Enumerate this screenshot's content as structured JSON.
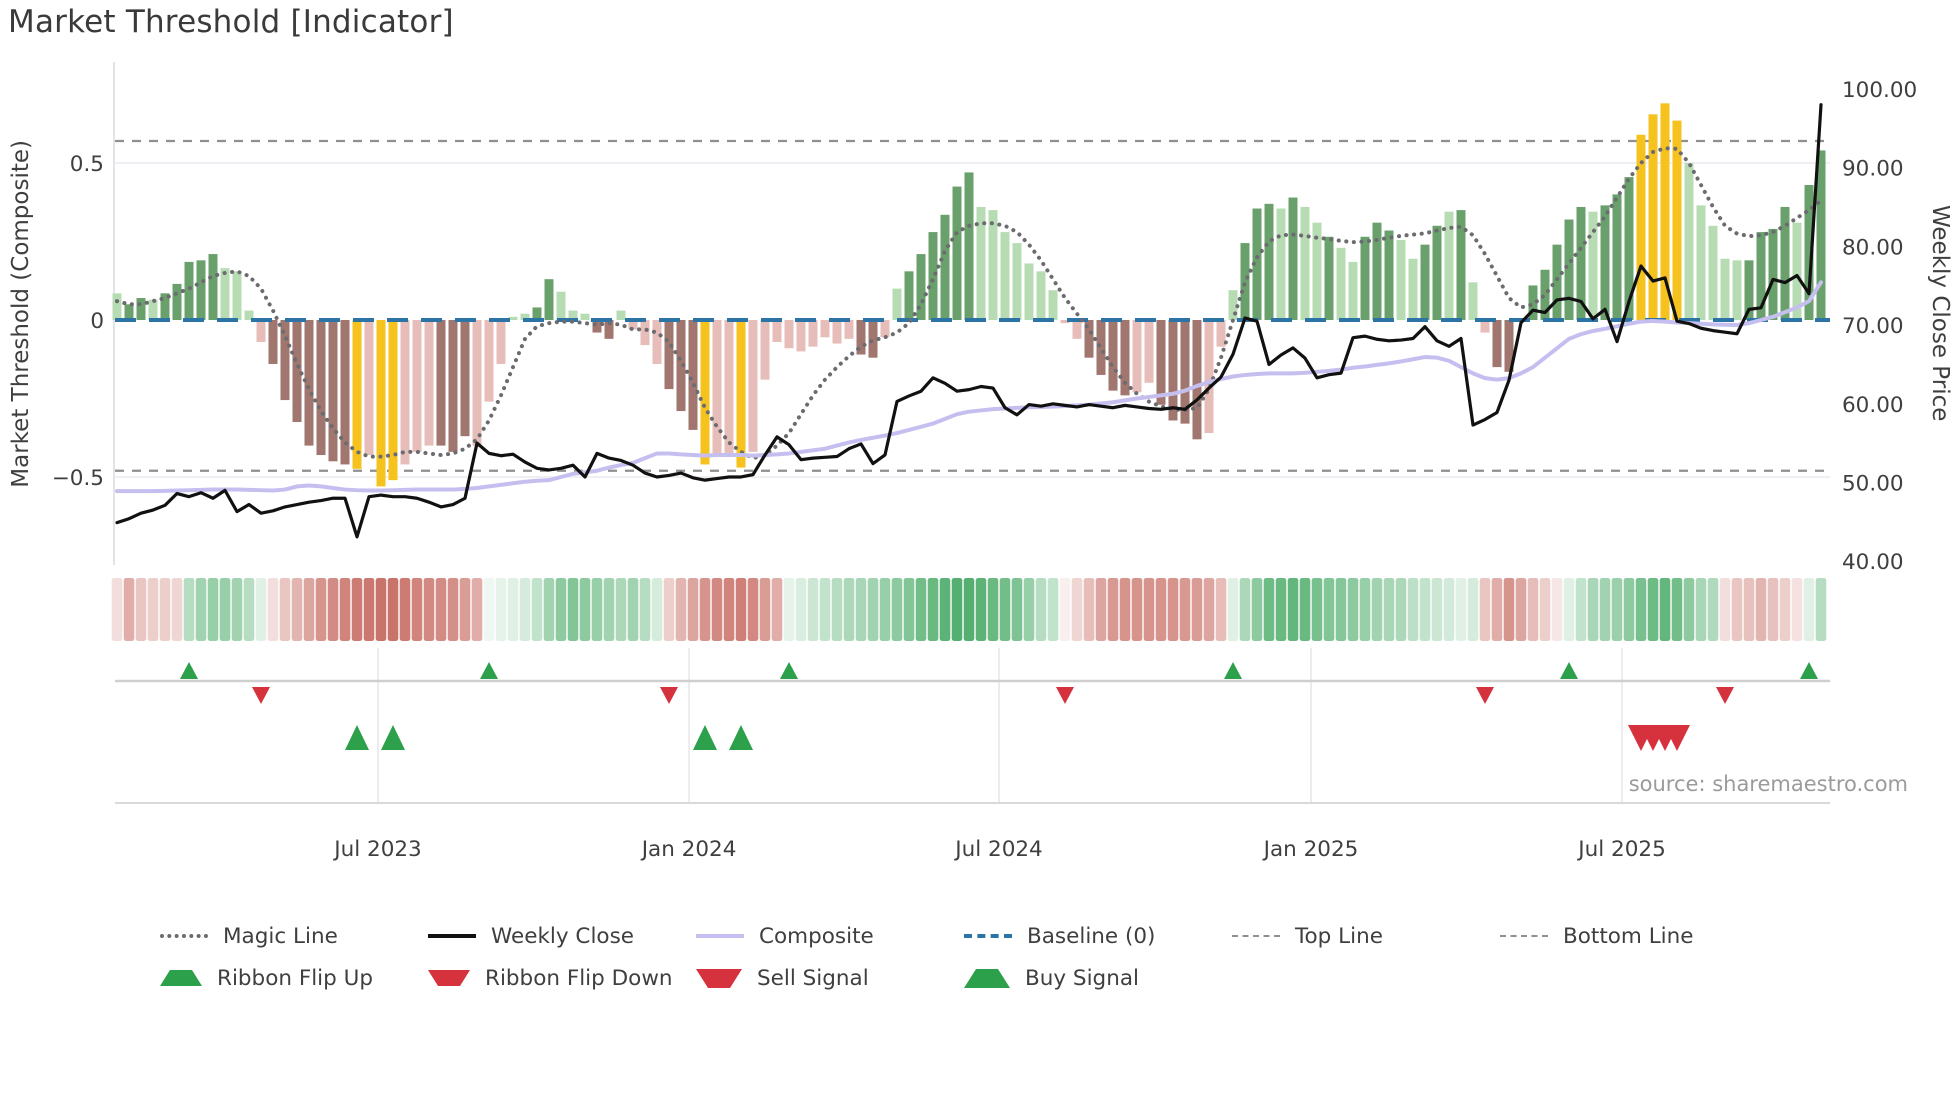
{
  "title": "Market Threshold [Indicator]",
  "source_caption": "source: sharemaestro.com",
  "axes": {
    "left_label": "Market Threshold (Composite)",
    "right_label": "Weekly Close Price",
    "left_ticks": [
      {
        "label": "0.5",
        "value": 0.5
      },
      {
        "label": "0",
        "value": 0
      },
      {
        "label": "−0.5",
        "value": -0.5
      }
    ],
    "right_ticks": [
      {
        "label": "100.00",
        "value": 100
      },
      {
        "label": "90.00",
        "value": 90
      },
      {
        "label": "80.00",
        "value": 80
      },
      {
        "label": "70.00",
        "value": 70
      },
      {
        "label": "60.00",
        "value": 60
      },
      {
        "label": "50.00",
        "value": 50
      },
      {
        "label": "40.00",
        "value": 40
      }
    ],
    "x_ticks": [
      {
        "label": "Jul 2023",
        "week": 21.75
      },
      {
        "label": "Jan 2024",
        "week": 47.67
      },
      {
        "label": "Jul 2024",
        "week": 73.5
      },
      {
        "label": "Jan 2025",
        "week": 99.5
      },
      {
        "label": "Jul 2025",
        "week": 125.42
      }
    ]
  },
  "legend": {
    "row1": [
      {
        "label": "Magic Line",
        "swatch": "sw-magic"
      },
      {
        "label": "Weekly Close",
        "swatch": "sw-close"
      },
      {
        "label": "Composite",
        "swatch": "sw-comp"
      },
      {
        "label": "Baseline (0)",
        "swatch": "sw-base"
      },
      {
        "label": "Top Line",
        "swatch": "sw-guide"
      },
      {
        "label": "Bottom Line",
        "swatch": "sw-guide"
      }
    ],
    "row2": [
      {
        "label": "Ribbon Flip Up",
        "marker": "mk-up"
      },
      {
        "label": "Ribbon Flip Down",
        "marker": "mk-down"
      },
      {
        "label": "Sell Signal",
        "marker": "mk-sell"
      },
      {
        "label": "Buy Signal",
        "marker": "mk-buy"
      }
    ]
  },
  "colors": {
    "bar_dark_green": "#69a06b",
    "bar_light_green": "#b7dcb4",
    "bar_gold": "#f6c21d",
    "bar_light_pink": "#e7bdb9",
    "bar_brown": "#a1766f",
    "weekly_close": "#111111",
    "composite": "#c5bff0",
    "magic_line": "#6b6b70",
    "baseline": "#2d74a6",
    "guide_gray": "#8f8f8f",
    "gridline": "#ececf0",
    "ribbon_green": "#2f9e50",
    "ribbon_red": "#c05b50",
    "flip_up": "#2ca04a",
    "flip_down": "#d6323e",
    "text_dark": "#3f3f3f",
    "text_muted": "#9b9b9b"
  },
  "chart_data": {
    "type": "combo-bar-line",
    "title": "Market Threshold [Indicator]",
    "x_unit": "week",
    "n_weeks": 143,
    "left_axis_range": [
      -0.78,
      0.82
    ],
    "price_axis_range": [
      39.5,
      103.4
    ],
    "baseline": 0,
    "top_line": 0.57,
    "bottom_line": -0.48,
    "grid_values": [
      0.5,
      -0.5
    ],
    "histogram_values": [
      0.085,
      0.05,
      0.07,
      0.065,
      0.085,
      0.115,
      0.185,
      0.19,
      0.21,
      0.165,
      0.155,
      0.03,
      -0.07,
      -0.14,
      -0.255,
      -0.325,
      -0.4,
      -0.43,
      -0.45,
      -0.46,
      -0.474,
      -0.43,
      -0.53,
      -0.51,
      -0.46,
      -0.42,
      -0.4,
      -0.4,
      -0.42,
      -0.37,
      -0.4,
      -0.26,
      -0.14,
      0.01,
      0.02,
      0.04,
      0.13,
      0.09,
      0.03,
      0.02,
      -0.04,
      -0.06,
      0.03,
      -0.03,
      -0.08,
      -0.14,
      -0.22,
      -0.29,
      -0.35,
      -0.46,
      -0.43,
      -0.43,
      -0.47,
      -0.42,
      -0.19,
      -0.07,
      -0.09,
      -0.1,
      -0.085,
      -0.055,
      -0.075,
      -0.06,
      -0.11,
      -0.12,
      -0.055,
      0.1,
      0.155,
      0.21,
      0.28,
      0.335,
      0.425,
      0.47,
      0.36,
      0.35,
      0.28,
      0.245,
      0.18,
      0.155,
      0.095,
      -0.01,
      -0.06,
      -0.12,
      -0.175,
      -0.225,
      -0.24,
      -0.23,
      -0.2,
      -0.27,
      -0.32,
      -0.33,
      -0.38,
      -0.36,
      -0.085,
      0.095,
      0.245,
      0.355,
      0.37,
      0.355,
      0.39,
      0.36,
      0.31,
      0.265,
      0.23,
      0.185,
      0.265,
      0.31,
      0.285,
      0.255,
      0.195,
      0.24,
      0.3,
      0.345,
      0.35,
      0.12,
      -0.04,
      -0.15,
      -0.165,
      0,
      0.11,
      0.16,
      0.24,
      0.32,
      0.36,
      0.345,
      0.365,
      0.4,
      0.455,
      0.59,
      0.655,
      0.69,
      0.635,
      0.5,
      0.365,
      0.3,
      0.195,
      0.19,
      0.19,
      0.28,
      0.29,
      0.36,
      0.31,
      0.43,
      0.54
    ],
    "histogram_colors": [
      "lg",
      "g",
      "g",
      "lg",
      "g",
      "g",
      "g",
      "g",
      "g",
      "lg",
      "lg",
      "lg",
      "p",
      "r",
      "r",
      "r",
      "r",
      "r",
      "r",
      "r",
      "y",
      "p",
      "y",
      "y",
      "p",
      "p",
      "p",
      "r",
      "r",
      "r",
      "p",
      "p",
      "p",
      "lg",
      "lg",
      "g",
      "g",
      "lg",
      "lg",
      "lg",
      "r",
      "r",
      "lg",
      "p",
      "p",
      "p",
      "r",
      "r",
      "r",
      "y",
      "p",
      "p",
      "y",
      "p",
      "p",
      "p",
      "p",
      "p",
      "p",
      "p",
      "p",
      "p",
      "r",
      "r",
      "p",
      "lg",
      "g",
      "g",
      "g",
      "g",
      "g",
      "g",
      "lg",
      "lg",
      "lg",
      "lg",
      "lg",
      "lg",
      "lg",
      "p",
      "p",
      "r",
      "r",
      "r",
      "r",
      "p",
      "p",
      "r",
      "r",
      "r",
      "r",
      "p",
      "p",
      "lg",
      "g",
      "g",
      "g",
      "lg",
      "g",
      "lg",
      "lg",
      "g",
      "lg",
      "lg",
      "g",
      "g",
      "g",
      "lg",
      "lg",
      "g",
      "g",
      "lg",
      "g",
      "lg",
      "p",
      "r",
      "r",
      "lg",
      "g",
      "g",
      "g",
      "g",
      "g",
      "lg",
      "g",
      "g",
      "g",
      "y",
      "y",
      "y",
      "y",
      "lg",
      "lg",
      "lg",
      "lg",
      "lg",
      "g",
      "g",
      "g",
      "g",
      "lg",
      "g",
      "g"
    ],
    "weekly_close": [
      44.9,
      45.4,
      46.1,
      46.5,
      47.1,
      48.6,
      48.2,
      48.7,
      48.0,
      49.0,
      46.3,
      47.2,
      46.1,
      46.4,
      46.9,
      47.2,
      47.5,
      47.7,
      48.0,
      48.0,
      43.1,
      48.2,
      48.4,
      48.2,
      48.2,
      48.0,
      47.5,
      46.9,
      47.2,
      48.0,
      55.0,
      53.7,
      53.4,
      53.6,
      52.6,
      51.8,
      51.6,
      51.8,
      52.2,
      50.7,
      53.7,
      53.1,
      52.8,
      52.2,
      51.2,
      50.7,
      50.9,
      51.2,
      50.6,
      50.3,
      50.5,
      50.7,
      50.7,
      51.0,
      53.5,
      55.8,
      54.8,
      52.9,
      53.1,
      53.2,
      53.3,
      54.3,
      54.9,
      52.4,
      53.5,
      60.3,
      61.0,
      61.6,
      63.3,
      62.6,
      61.6,
      61.8,
      62.2,
      62.0,
      59.5,
      58.6,
      59.9,
      59.7,
      60.0,
      59.8,
      59.6,
      59.9,
      59.7,
      59.5,
      59.8,
      59.6,
      59.4,
      59.3,
      59.5,
      59.3,
      60.5,
      62.0,
      63.4,
      66.3,
      70.9,
      70.5,
      65.0,
      66.2,
      67.1,
      65.8,
      63.3,
      63.7,
      63.9,
      68.4,
      68.6,
      68.2,
      68.0,
      68.1,
      68.3,
      69.8,
      68.0,
      67.3,
      68.3,
      57.3,
      58.0,
      58.9,
      63.0,
      70.3,
      71.9,
      71.6,
      73.2,
      73.4,
      73.0,
      70.8,
      72.0,
      67.9,
      73.0,
      77.5,
      75.6,
      76.0,
      70.5,
      70.2,
      69.6,
      69.3,
      69.1,
      68.9,
      72.0,
      72.2,
      75.8,
      75.4,
      76.3,
      74.0,
      98.0
    ],
    "composite": [
      -0.545,
      -0.545,
      -0.545,
      -0.545,
      -0.544,
      -0.543,
      -0.542,
      -0.541,
      -0.54,
      -0.54,
      -0.54,
      -0.541,
      -0.542,
      -0.543,
      -0.54,
      -0.53,
      -0.527,
      -0.53,
      -0.535,
      -0.54,
      -0.542,
      -0.543,
      -0.543,
      -0.542,
      -0.541,
      -0.54,
      -0.54,
      -0.54,
      -0.54,
      -0.538,
      -0.535,
      -0.53,
      -0.525,
      -0.52,
      -0.515,
      -0.512,
      -0.51,
      -0.5,
      -0.49,
      -0.485,
      -0.48,
      -0.47,
      -0.462,
      -0.455,
      -0.44,
      -0.425,
      -0.425,
      -0.428,
      -0.43,
      -0.432,
      -0.43,
      -0.43,
      -0.43,
      -0.432,
      -0.43,
      -0.428,
      -0.425,
      -0.42,
      -0.415,
      -0.41,
      -0.4,
      -0.39,
      -0.382,
      -0.375,
      -0.368,
      -0.36,
      -0.35,
      -0.34,
      -0.33,
      -0.315,
      -0.3,
      -0.292,
      -0.288,
      -0.284,
      -0.282,
      -0.28,
      -0.278,
      -0.277,
      -0.276,
      -0.274,
      -0.272,
      -0.27,
      -0.266,
      -0.262,
      -0.256,
      -0.25,
      -0.245,
      -0.24,
      -0.235,
      -0.225,
      -0.21,
      -0.198,
      -0.188,
      -0.18,
      -0.175,
      -0.172,
      -0.17,
      -0.17,
      -0.17,
      -0.168,
      -0.165,
      -0.162,
      -0.158,
      -0.152,
      -0.148,
      -0.143,
      -0.138,
      -0.132,
      -0.125,
      -0.118,
      -0.12,
      -0.13,
      -0.15,
      -0.17,
      -0.185,
      -0.19,
      -0.185,
      -0.17,
      -0.15,
      -0.12,
      -0.09,
      -0.06,
      -0.045,
      -0.035,
      -0.028,
      -0.02,
      -0.012,
      -0.005,
      -0.003,
      -0.005,
      -0.008,
      -0.01,
      -0.012,
      -0.014,
      -0.015,
      -0.016,
      -0.01,
      0.0,
      0.01,
      0.025,
      0.04,
      0.06,
      0.12
    ],
    "magic_line": [
      0.06,
      0.05,
      0.05,
      0.06,
      0.07,
      0.085,
      0.1,
      0.12,
      0.14,
      0.15,
      0.155,
      0.14,
      0.1,
      0.03,
      -0.05,
      -0.14,
      -0.22,
      -0.29,
      -0.345,
      -0.39,
      -0.42,
      -0.435,
      -0.435,
      -0.43,
      -0.42,
      -0.42,
      -0.425,
      -0.43,
      -0.425,
      -0.41,
      -0.38,
      -0.32,
      -0.24,
      -0.15,
      -0.06,
      -0.02,
      -0.01,
      -0.005,
      -0.005,
      -0.01,
      -0.015,
      -0.01,
      -0.015,
      -0.03,
      -0.03,
      -0.04,
      -0.07,
      -0.13,
      -0.2,
      -0.28,
      -0.34,
      -0.39,
      -0.42,
      -0.44,
      -0.43,
      -0.4,
      -0.36,
      -0.3,
      -0.24,
      -0.19,
      -0.15,
      -0.115,
      -0.085,
      -0.065,
      -0.055,
      -0.04,
      -0.01,
      0.05,
      0.13,
      0.22,
      0.28,
      0.3,
      0.308,
      0.308,
      0.3,
      0.28,
      0.24,
      0.19,
      0.13,
      0.07,
      0.02,
      -0.03,
      -0.09,
      -0.15,
      -0.2,
      -0.235,
      -0.26,
      -0.275,
      -0.285,
      -0.287,
      -0.28,
      -0.22,
      -0.12,
      0.0,
      0.12,
      0.2,
      0.25,
      0.27,
      0.272,
      0.268,
      0.262,
      0.258,
      0.252,
      0.248,
      0.25,
      0.255,
      0.262,
      0.268,
      0.272,
      0.276,
      0.285,
      0.293,
      0.297,
      0.27,
      0.21,
      0.14,
      0.07,
      0.04,
      0.05,
      0.08,
      0.13,
      0.18,
      0.23,
      0.28,
      0.33,
      0.39,
      0.45,
      0.5,
      0.535,
      0.547,
      0.545,
      0.5,
      0.43,
      0.36,
      0.3,
      0.275,
      0.267,
      0.27,
      0.28,
      0.3,
      0.325,
      0.35,
      0.38
    ],
    "ribbon": [
      -0.2,
      -0.5,
      -0.35,
      -0.3,
      -0.3,
      -0.25,
      0.35,
      0.45,
      0.5,
      0.5,
      0.45,
      0.35,
      0.15,
      -0.2,
      -0.35,
      -0.45,
      -0.55,
      -0.65,
      -0.7,
      -0.75,
      -0.8,
      -0.82,
      -0.85,
      -0.85,
      -0.8,
      -0.75,
      -0.72,
      -0.7,
      -0.68,
      -0.6,
      -0.5,
      0.08,
      0.12,
      0.15,
      0.2,
      0.3,
      0.45,
      0.55,
      0.6,
      0.55,
      0.5,
      0.45,
      0.4,
      0.45,
      0.35,
      0.2,
      -0.3,
      -0.45,
      -0.55,
      -0.65,
      -0.72,
      -0.75,
      -0.78,
      -0.72,
      -0.6,
      -0.5,
      0.12,
      0.18,
      0.25,
      0.3,
      0.35,
      0.4,
      0.42,
      0.45,
      0.5,
      0.55,
      0.6,
      0.68,
      0.72,
      0.78,
      0.82,
      0.82,
      0.78,
      0.72,
      0.68,
      0.62,
      0.5,
      0.35,
      0.3,
      -0.1,
      -0.25,
      -0.4,
      -0.55,
      -0.62,
      -0.65,
      -0.65,
      -0.65,
      -0.65,
      -0.65,
      -0.62,
      -0.6,
      -0.55,
      -0.4,
      0.15,
      0.4,
      0.55,
      0.7,
      0.72,
      0.75,
      0.72,
      0.65,
      0.6,
      0.58,
      0.55,
      0.5,
      0.45,
      0.42,
      0.4,
      0.32,
      0.3,
      0.25,
      0.22,
      0.15,
      0.2,
      -0.35,
      -0.5,
      -0.65,
      -0.55,
      -0.4,
      -0.3,
      -0.15,
      0.15,
      0.3,
      0.42,
      0.45,
      0.48,
      0.55,
      0.65,
      0.7,
      0.75,
      0.68,
      0.55,
      0.42,
      0.38,
      -0.2,
      -0.35,
      -0.38,
      -0.45,
      -0.38,
      -0.3,
      -0.18,
      0.15,
      0.35
    ],
    "signals": {
      "ribbon_flip_up_weeks": [
        6,
        31,
        56,
        93,
        121,
        141
      ],
      "ribbon_flip_down_weeks": [
        12,
        46,
        79,
        114,
        134
      ],
      "buy_signal_weeks": [
        20,
        23,
        49,
        52
      ],
      "sell_signal_weeks": [
        127,
        128,
        129,
        130
      ]
    }
  }
}
